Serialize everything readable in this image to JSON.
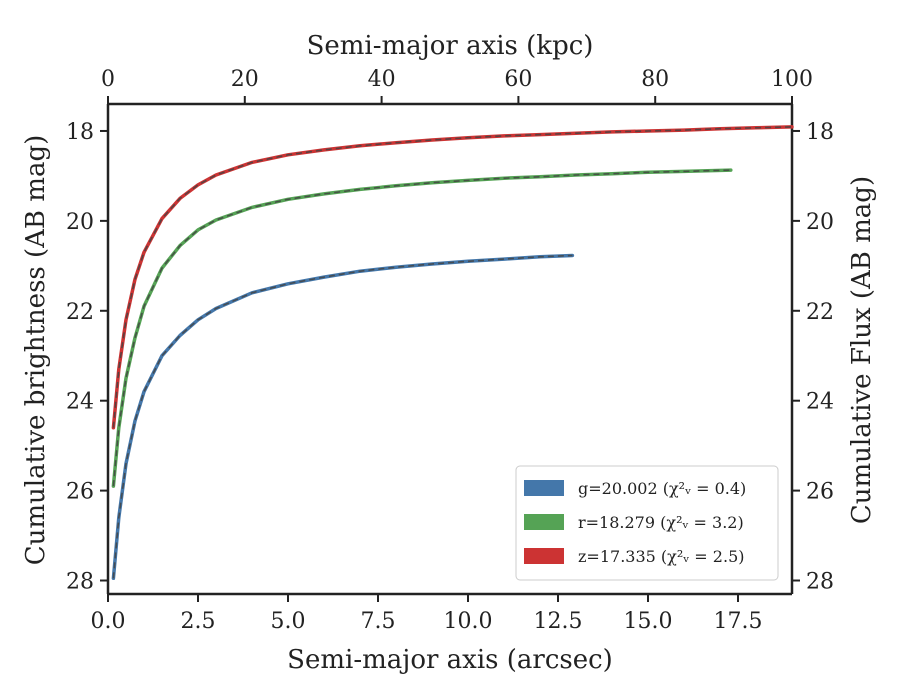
{
  "chart_data": {
    "type": "line",
    "xlabel_bottom": "Semi-major axis (arcsec)",
    "xlabel_top": "Semi-major axis (kpc)",
    "ylabel_left": "Cumulative brightness (AB mag)",
    "ylabel_right": "Cumulative Flux (AB mag)",
    "xlim": [
      0,
      19.0
    ],
    "ylim": [
      28.3,
      17.4
    ],
    "ylim_note": "y axis inverted (bright at top)",
    "top_axis_lim": [
      0,
      100
    ],
    "x_ticks": [
      "0.0",
      "2.5",
      "5.0",
      "7.5",
      "10.0",
      "12.5",
      "15.0",
      "17.5"
    ],
    "x_tick_values": [
      0,
      2.5,
      5,
      7.5,
      10,
      12.5,
      15,
      17.5
    ],
    "top_ticks": [
      "0",
      "20",
      "40",
      "60",
      "80",
      "100"
    ],
    "top_tick_values": [
      0,
      20,
      40,
      60,
      80,
      100
    ],
    "y_ticks": [
      "18",
      "20",
      "22",
      "24",
      "26",
      "28"
    ],
    "y_tick_values": [
      18,
      20,
      22,
      24,
      26,
      28
    ],
    "grid": false,
    "legend_position": "lower-right",
    "series": [
      {
        "name": "g=20.002 ($\\chi^2_\\nu=0.4$)",
        "legend_text": "g=20.002 (χ²ᵥ = 0.4)",
        "color": "#4477aa",
        "x": [
          0.15,
          0.3,
          0.5,
          0.75,
          1.0,
          1.5,
          2.0,
          2.5,
          3.0,
          4.0,
          5.0,
          6.0,
          7.0,
          8.0,
          9.0,
          10.0,
          11.0,
          12.0,
          12.9
        ],
        "y": [
          27.95,
          26.6,
          25.4,
          24.45,
          23.8,
          23.0,
          22.55,
          22.2,
          21.95,
          21.6,
          21.4,
          21.25,
          21.12,
          21.03,
          20.96,
          20.9,
          20.85,
          20.8,
          20.77
        ]
      },
      {
        "name": "r=18.279 ($\\chi^2_\\nu=3.2$)",
        "legend_text": "r=18.279 (χ²ᵥ = 3.2)",
        "color": "#55a355",
        "x": [
          0.15,
          0.3,
          0.5,
          0.75,
          1.0,
          1.5,
          2.0,
          2.5,
          3.0,
          4.0,
          5.0,
          6.0,
          7.0,
          8.0,
          9.0,
          10.0,
          11.0,
          12.0,
          13.0,
          14.0,
          15.0,
          16.0,
          17.3
        ],
        "y": [
          25.9,
          24.6,
          23.5,
          22.6,
          21.9,
          21.05,
          20.55,
          20.2,
          19.98,
          19.7,
          19.52,
          19.4,
          19.3,
          19.22,
          19.15,
          19.1,
          19.05,
          19.02,
          18.98,
          18.95,
          18.92,
          18.9,
          18.87
        ]
      },
      {
        "name": "z=17.335 ($\\chi^2_\\nu=2.5$)",
        "legend_text": "z=17.335 (χ²ᵥ = 2.5)",
        "color": "#cc3333",
        "x": [
          0.15,
          0.3,
          0.5,
          0.75,
          1.0,
          1.5,
          2.0,
          2.5,
          3.0,
          4.0,
          5.0,
          6.0,
          7.0,
          8.0,
          9.0,
          10.0,
          11.0,
          12.0,
          13.0,
          14.0,
          15.0,
          16.0,
          17.0,
          18.0,
          19.0
        ],
        "y": [
          24.6,
          23.3,
          22.2,
          21.3,
          20.7,
          19.95,
          19.5,
          19.2,
          18.98,
          18.7,
          18.53,
          18.42,
          18.33,
          18.26,
          18.2,
          18.15,
          18.11,
          18.08,
          18.05,
          18.02,
          18.0,
          17.98,
          17.95,
          17.93,
          17.91
        ]
      }
    ]
  }
}
